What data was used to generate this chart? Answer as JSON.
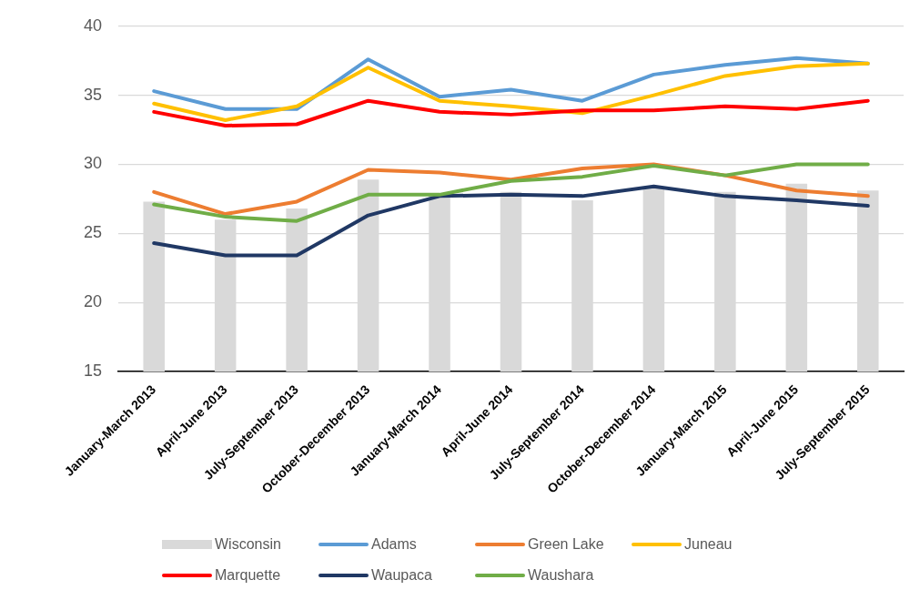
{
  "chart_data": {
    "type": "line",
    "categories": [
      "January-March 2013",
      "April-June 2013",
      "July-September 2013",
      "October-December 2013",
      "January-March 2014",
      "April-June 2014",
      "July-September 2014",
      "October-December 2014",
      "January-March 2015",
      "April-June 2015",
      "July-September 2015"
    ],
    "series": [
      {
        "name": "Wisconsin",
        "type": "bar",
        "color": "#d9d9d9",
        "values": [
          27.3,
          26.0,
          26.8,
          28.9,
          27.8,
          28.0,
          27.4,
          28.3,
          28.0,
          28.6,
          28.1
        ]
      },
      {
        "name": "Adams",
        "color": "#5b9bd5",
        "values": [
          35.3,
          34.0,
          34.0,
          37.6,
          34.9,
          35.4,
          34.6,
          36.5,
          37.2,
          37.7,
          37.3
        ]
      },
      {
        "name": "Green Lake",
        "color": "#ed7d31",
        "values": [
          28.0,
          26.4,
          27.3,
          29.6,
          29.4,
          28.9,
          29.7,
          30.0,
          29.2,
          28.1,
          27.7
        ]
      },
      {
        "name": "Juneau",
        "color": "#ffc000",
        "values": [
          34.4,
          33.2,
          34.2,
          37.0,
          34.6,
          34.2,
          33.7,
          35.0,
          36.4,
          37.1,
          37.3
        ]
      },
      {
        "name": "Marquette",
        "color": "#ff0000",
        "values": [
          33.8,
          32.8,
          32.9,
          34.6,
          33.8,
          33.6,
          33.9,
          33.9,
          34.2,
          34.0,
          34.6
        ]
      },
      {
        "name": "Waupaca",
        "color": "#203864",
        "values": [
          24.3,
          23.4,
          23.4,
          26.3,
          27.7,
          27.8,
          27.7,
          28.4,
          27.7,
          27.4,
          27.0
        ]
      },
      {
        "name": "Waushara",
        "color": "#70ad47",
        "values": [
          27.1,
          26.2,
          25.9,
          27.8,
          27.8,
          28.8,
          29.1,
          29.9,
          29.2,
          30.0,
          30.0
        ]
      }
    ],
    "ylim": [
      15,
      40
    ],
    "yticks": [
      15,
      20,
      25,
      30,
      35,
      40
    ],
    "grid": "y",
    "legend": "bottom",
    "marker": "none"
  }
}
